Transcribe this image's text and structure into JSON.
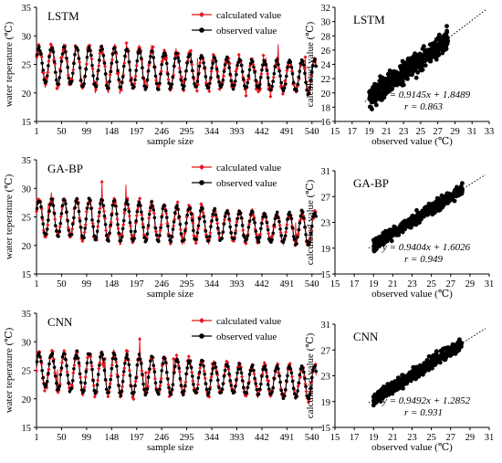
{
  "chart_data": [
    {
      "type": "line",
      "panel_label": "LSTM",
      "xlabel": "sample size",
      "ylabel": "water teperature (℃)",
      "ylim": [
        15,
        35
      ],
      "yticks": [
        15,
        20,
        25,
        30,
        35
      ],
      "xlim": [
        1,
        560
      ],
      "xticks": [
        1,
        50,
        99,
        148,
        197,
        246,
        295,
        344,
        393,
        442,
        491,
        540
      ],
      "legend_position": "top-right",
      "series": [
        {
          "name": "calculated value",
          "color": "#e8141c",
          "marker": "diamond"
        },
        {
          "name": "observed value",
          "color": "#000000",
          "marker": "circle"
        }
      ]
    },
    {
      "type": "scatter",
      "panel_label": "LSTM",
      "xlabel": "observed value (℃)",
      "ylabel": "calculated value (℃)",
      "xlim": [
        15,
        33
      ],
      "xticks": [
        15,
        17,
        19,
        21,
        23,
        25,
        27,
        29,
        31,
        33
      ],
      "ylim": [
        16,
        32
      ],
      "yticks": [
        16,
        18,
        20,
        22,
        24,
        26,
        28,
        30,
        32
      ],
      "regression": {
        "slope": 0.9145,
        "intercept": 1.8489,
        "r": 0.863
      },
      "equation_text": "y = 0.9145x + 1.8489",
      "r_text": "r = 0.863"
    },
    {
      "type": "line",
      "panel_label": "GA-BP",
      "xlabel": "sample size",
      "ylabel": "water teperature (℃)",
      "ylim": [
        15,
        35
      ],
      "yticks": [
        15,
        20,
        25,
        30,
        35
      ],
      "xlim": [
        1,
        560
      ],
      "xticks": [
        1,
        50,
        99,
        148,
        197,
        246,
        295,
        344,
        393,
        442,
        491,
        540
      ],
      "legend_position": "top-right",
      "series": [
        {
          "name": "calculated value",
          "color": "#e8141c",
          "marker": "diamond"
        },
        {
          "name": "observed value",
          "color": "#000000",
          "marker": "circle"
        }
      ]
    },
    {
      "type": "scatter",
      "panel_label": "GA-BP",
      "xlabel": "observed value (℃)",
      "ylabel": "calculated value (℃)",
      "xlim": [
        15,
        31
      ],
      "xticks": [
        15,
        17,
        19,
        21,
        23,
        25,
        27,
        29,
        31
      ],
      "ylim": [
        15,
        31
      ],
      "yticks": [
        15,
        19,
        23,
        27,
        31
      ],
      "regression": {
        "slope": 0.9404,
        "intercept": 1.6026,
        "r": 0.949
      },
      "equation_text": "y = 0.9404x + 1.6026",
      "r_text": "r = 0.949"
    },
    {
      "type": "line",
      "panel_label": "CNN",
      "xlabel": "sample size",
      "ylabel": "water teperature (℃)",
      "ylim": [
        15,
        35
      ],
      "yticks": [
        15,
        20,
        25,
        30,
        35
      ],
      "xlim": [
        1,
        560
      ],
      "xticks": [
        1,
        50,
        99,
        148,
        197,
        246,
        295,
        344,
        393,
        442,
        491,
        540
      ],
      "legend_position": "top-right",
      "series": [
        {
          "name": "calculated value",
          "color": "#e8141c",
          "marker": "diamond"
        },
        {
          "name": "observed value",
          "color": "#000000",
          "marker": "circle"
        }
      ]
    },
    {
      "type": "scatter",
      "panel_label": "CNN",
      "xlabel": "observed value (℃)",
      "ylabel": "calculated value (℃)",
      "xlim": [
        15,
        31
      ],
      "xticks": [
        15,
        17,
        19,
        21,
        23,
        25,
        27,
        29,
        31
      ],
      "ylim": [
        15,
        31
      ],
      "yticks": [
        15,
        19,
        23,
        27,
        31
      ],
      "regression": {
        "slope": 0.9492,
        "intercept": 1.2852,
        "r": 0.931
      },
      "equation_text": "y = 0.9492x + 1.2852",
      "r_text": "r = 0.931"
    }
  ]
}
